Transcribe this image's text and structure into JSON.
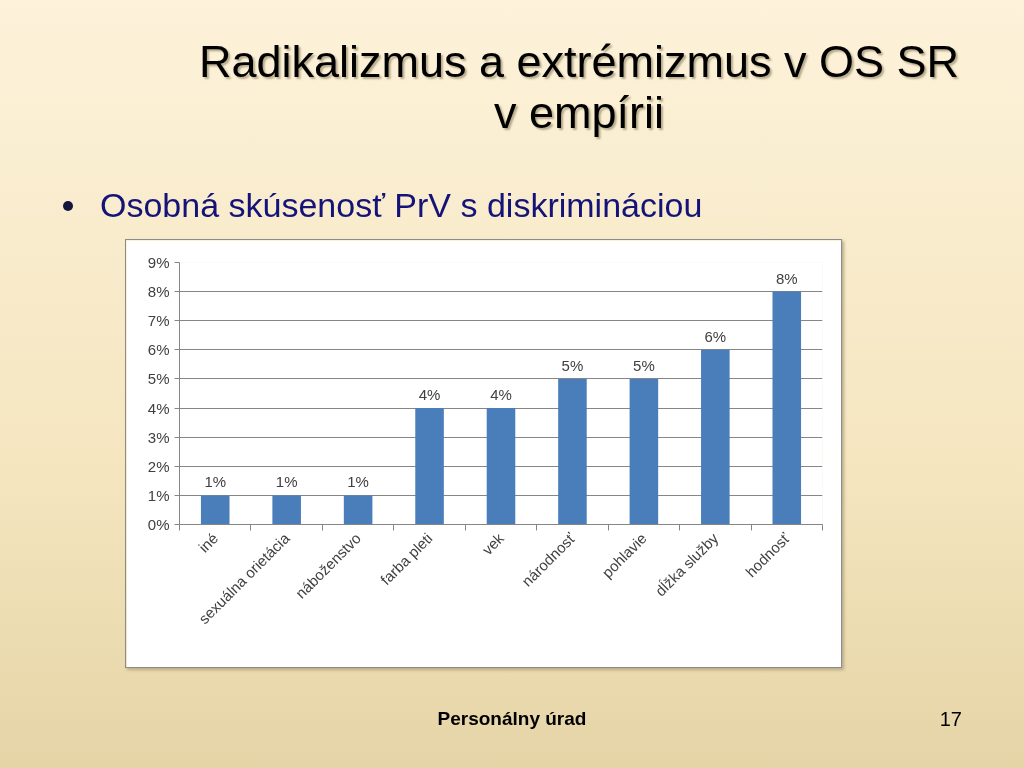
{
  "chart_data": {
    "type": "bar",
    "title": "Radikalizmus a extrémizmus v OS SR v empírii",
    "subtitle": "Osobná skúsenosť PrV s diskrimináciou",
    "categories": [
      "iné",
      "sexuálna orietácia",
      "náboženstvo",
      "farba pleti",
      "vek",
      "národnosť",
      "pohlavie",
      "dĺžka služby",
      "hodnosť"
    ],
    "values": [
      1,
      1,
      1,
      4,
      4,
      5,
      5,
      6,
      8
    ],
    "color": "#4a7ebb",
    "value_labels": [
      "1%",
      "1%",
      "1%",
      "4%",
      "4%",
      "5%",
      "5%",
      "6%",
      "8%"
    ],
    "ylim": [
      0,
      9
    ],
    "yticks": [
      {
        "value": 0,
        "label": "0%"
      },
      {
        "value": 1,
        "label": "1%"
      },
      {
        "value": 2,
        "label": "2%"
      },
      {
        "value": 3,
        "label": "3%"
      },
      {
        "value": 4,
        "label": "4%"
      },
      {
        "value": 5,
        "label": "5%"
      },
      {
        "value": 6,
        "label": "6%"
      },
      {
        "value": 7,
        "label": "7%"
      },
      {
        "value": 8,
        "label": "8%"
      },
      {
        "value": 9,
        "label": "9%"
      }
    ],
    "grid": "y",
    "annotations": [
      "Personálny úrad",
      "17"
    ]
  }
}
